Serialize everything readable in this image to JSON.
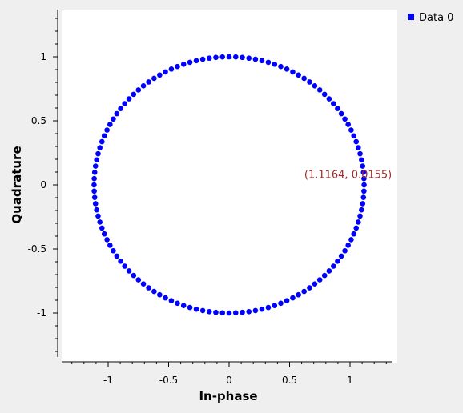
{
  "chart_data": {
    "type": "scatter",
    "title": "",
    "xlabel": "In-phase",
    "ylabel": "Quadrature",
    "xlim": [
      -1.4,
      1.4
    ],
    "ylim": [
      -1.4,
      1.4
    ],
    "xticks": [
      -1,
      -0.5,
      0,
      0.5,
      1
    ],
    "xtick_labels": [
      "-1",
      "-0.5",
      "0",
      "0.5",
      "1"
    ],
    "yticks": [
      -1,
      -0.5,
      0,
      0.5,
      1
    ],
    "ytick_labels": [
      "-1",
      "-0.5",
      "0",
      "0.5",
      "1"
    ],
    "grid": false,
    "legend_position": "top-right",
    "series": [
      {
        "name": "Data 0",
        "color": "#0000ff",
        "shape": "circle",
        "x_radius": 1.1164,
        "y_radius": 1.0,
        "point_count": 128
      }
    ],
    "annotation": {
      "text": "(1.1164, 0.0155)",
      "x": 1.1164,
      "y": 0.0155,
      "color": "#a52a2a"
    }
  }
}
